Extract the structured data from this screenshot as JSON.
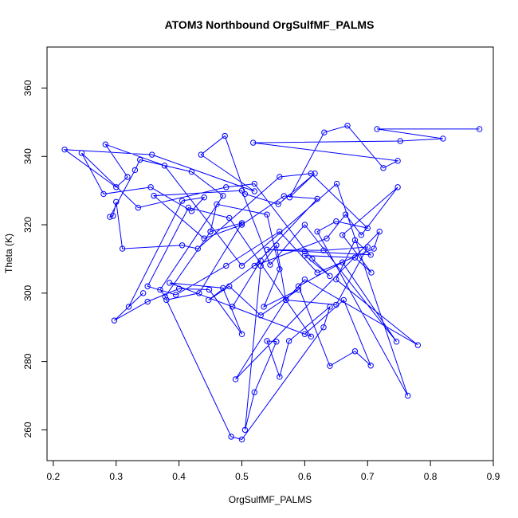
{
  "chart_data": {
    "type": "line",
    "title": "ATOM3 Northbound OrgSulfMF_PALMS",
    "xlabel": "OrgSulfMF_PALMS",
    "ylabel": "Theta (K)",
    "xlim": [
      0.19,
      0.9
    ],
    "ylim": [
      251,
      372
    ],
    "xticks": [
      0.2,
      0.3,
      0.4,
      0.5,
      0.6,
      0.7,
      0.8,
      0.9
    ],
    "xtick_labels": [
      "0.2",
      "0.3",
      "0.4",
      "0.5",
      "0.6",
      "0.7",
      "0.8",
      "0.9"
    ],
    "yticks": [
      260,
      280,
      300,
      320,
      340,
      360
    ],
    "ytick_labels": [
      "260",
      "280",
      "300",
      "320",
      "340",
      "360"
    ],
    "grid": false,
    "series": [
      {
        "color": "#0000FF",
        "marker": "open-circle",
        "x": [
          0.878,
          0.715,
          0.82,
          0.752,
          0.518,
          0.748,
          0.725,
          0.668,
          0.631,
          0.576,
          0.616,
          0.558,
          0.505,
          0.473,
          0.435,
          0.52,
          0.357,
          0.218,
          0.3,
          0.318,
          0.283,
          0.377,
          0.5,
          0.651,
          0.764,
          0.62,
          0.65,
          0.7,
          0.61,
          0.56,
          0.43,
          0.405,
          0.31,
          0.3,
          0.295,
          0.29,
          0.33,
          0.338,
          0.42,
          0.47,
          0.37,
          0.378,
          0.45,
          0.46,
          0.54,
          0.56,
          0.535,
          0.59,
          0.53,
          0.48,
          0.447,
          0.53,
          0.485,
          0.6,
          0.662,
          0.705,
          0.68,
          0.64,
          0.59,
          0.66,
          0.746,
          0.6,
          0.545,
          0.5,
          0.36,
          0.44,
          0.5,
          0.567,
          0.62,
          0.52,
          0.635,
          0.665,
          0.69,
          0.748,
          0.66,
          0.706,
          0.68,
          0.6,
          0.64,
          0.612,
          0.52,
          0.475,
          0.335,
          0.245,
          0.28,
          0.355,
          0.42,
          0.44,
          0.405,
          0.32,
          0.343,
          0.297,
          0.35,
          0.4,
          0.448,
          0.5,
          0.47,
          0.385,
          0.61,
          0.48,
          0.415,
          0.35,
          0.395,
          0.475,
          0.56,
          0.62,
          0.71,
          0.719,
          0.49,
          0.57,
          0.65,
          0.7,
          0.63,
          0.54,
          0.6,
          0.705,
          0.68,
          0.65,
          0.78,
          0.6,
          0.57,
          0.555,
          0.53,
          0.505,
          0.52,
          0.555,
          0.54,
          0.56,
          0.575,
          0.64,
          0.63,
          0.5,
          0.483,
          0.38,
          0.432,
          0.5,
          0.45
        ],
        "y": [
          348.0,
          348.0,
          345.2,
          344.5,
          344.0,
          338.7,
          336.6,
          349.0,
          347.0,
          328.0,
          335.0,
          326.0,
          329.0,
          346.0,
          340.5,
          329.8,
          340.5,
          342.0,
          331.0,
          334.0,
          343.5,
          337.3,
          308.0,
          332.0,
          270.0,
          318.0,
          321.0,
          319.0,
          335.0,
          334.0,
          313.0,
          314.0,
          313.0,
          326.7,
          322.6,
          322.3,
          336.0,
          339.0,
          335.5,
          328.5,
          301.0,
          299.0,
          318.0,
          326.0,
          323.0,
          307.0,
          296.0,
          301.0,
          293.5,
          302.0,
          298.0,
          309.5,
          296.0,
          288.0,
          298.0,
          278.8,
          283.0,
          278.7,
          302.0,
          309.0,
          285.8,
          320.0,
          308.3,
          330.0,
          328.5,
          316.0,
          320.0,
          328.4,
          327.6,
          308.0,
          316.0,
          323.0,
          317.0,
          331.0,
          317.0,
          306.0,
          310.4,
          311.0,
          305.0,
          310.0,
          332.0,
          331.0,
          325.0,
          341.0,
          329.0,
          331.0,
          324.0,
          328.0,
          327.0,
          296.0,
          300.0,
          292.0,
          297.5,
          301.3,
          301.0,
          288.0,
          301.5,
          303.0,
          287.3,
          322.0,
          325.0,
          302.0,
          299.5,
          308.0,
          318.0,
          306.0,
          313.0,
          318.0,
          274.8,
          298.0,
          296.6,
          313.5,
          312.5,
          312.7,
          312.2,
          311.2,
          315.5,
          304.0,
          284.8,
          304.0,
          298.0,
          314.0,
          308.0,
          260.0,
          271.0,
          285.8,
          286.0,
          275.5,
          286.0,
          296.0,
          290.0,
          257.2,
          258.0,
          298.0,
          300.0,
          320.5,
          318.0
        ]
      }
    ]
  }
}
